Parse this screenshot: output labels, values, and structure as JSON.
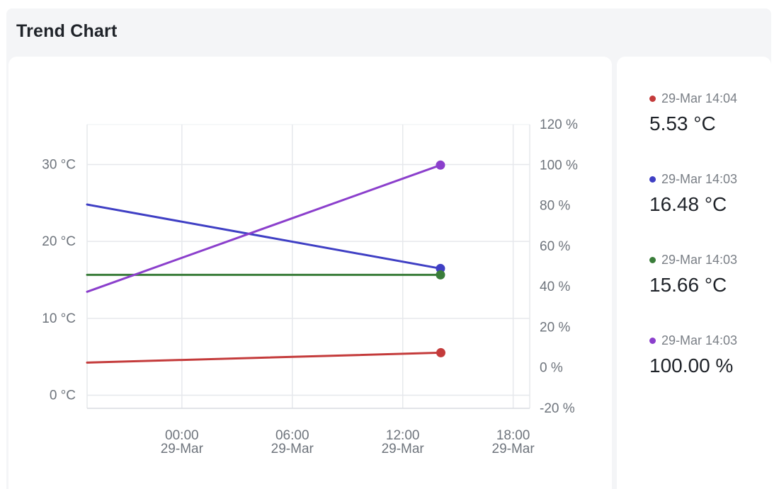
{
  "header": {
    "title": "Trend Chart"
  },
  "chart_data": {
    "type": "line",
    "left_axis": {
      "ticks": [
        0,
        10,
        20,
        30
      ],
      "tick_labels": [
        "0 °C",
        "10 °C",
        "20 °C",
        "30 °C"
      ],
      "ylim": [
        -1.7,
        35.2
      ],
      "unit": "°C"
    },
    "right_axis": {
      "ticks": [
        -20,
        0,
        20,
        40,
        60,
        80,
        100,
        120
      ],
      "tick_labels": [
        "-20 %",
        "0 %",
        "20 %",
        "40 %",
        "60 %",
        "80 %",
        "100 %",
        "120 %"
      ],
      "ylim": [
        -20,
        120
      ],
      "unit": "%"
    },
    "x_axis": {
      "ticks": [
        {
          "time": "00:00",
          "date": "29-Mar",
          "hour": 0
        },
        {
          "time": "06:00",
          "date": "29-Mar",
          "hour": 6
        },
        {
          "time": "12:00",
          "date": "29-Mar",
          "hour": 12
        },
        {
          "time": "18:00",
          "date": "29-Mar",
          "hour": 18
        }
      ],
      "range_hours": [
        -5.15,
        18.9
      ]
    },
    "series": [
      {
        "color": "#c43b3b",
        "axis": "left",
        "points": [
          [
            -5.15,
            4.25
          ],
          [
            14.07,
            5.53
          ]
        ]
      },
      {
        "color": "#3f3fc4",
        "axis": "left",
        "points": [
          [
            -5.15,
            24.8
          ],
          [
            14.05,
            16.48
          ]
        ]
      },
      {
        "color": "#3a7d3a",
        "axis": "left",
        "points": [
          [
            -5.15,
            15.66
          ],
          [
            14.05,
            15.66
          ]
        ]
      },
      {
        "color": "#8b3fcc",
        "axis": "right",
        "points": [
          [
            -5.15,
            37.5
          ],
          [
            14.05,
            100.0
          ]
        ]
      }
    ]
  },
  "legend": {
    "items": [
      {
        "time": "29-Mar 14:04",
        "value": "5.53 °C",
        "color": "#c43b3b"
      },
      {
        "time": "29-Mar 14:03",
        "value": "16.48 °C",
        "color": "#3f3fc4"
      },
      {
        "time": "29-Mar 14:03",
        "value": "15.66 °C",
        "color": "#3a7d3a"
      },
      {
        "time": "29-Mar 14:03",
        "value": "100.00 %",
        "color": "#8b3fcc"
      }
    ]
  }
}
